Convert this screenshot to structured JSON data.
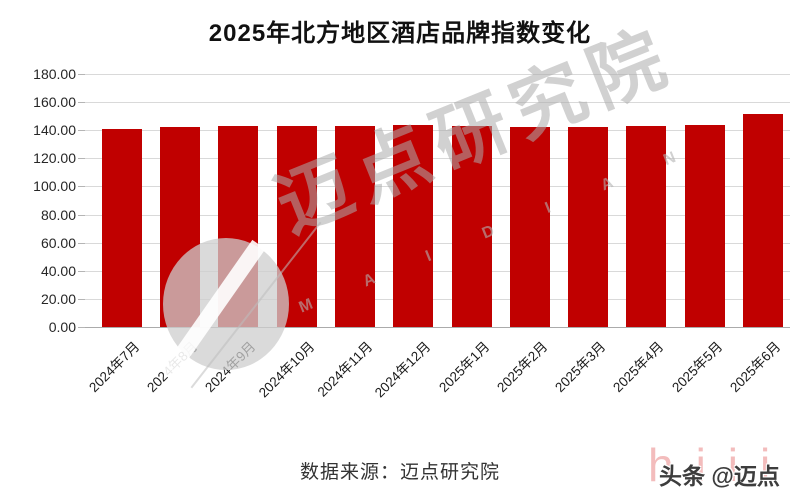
{
  "title": "2025年北方地区酒店品牌指数变化",
  "chart_data": {
    "type": "bar",
    "title": "2025年北方地区酒店品牌指数变化",
    "categories": [
      "2024年7月",
      "2024年8月",
      "2024年9月",
      "2024年10月",
      "2024年11月",
      "2024年12月",
      "2025年1月",
      "2025年2月",
      "2025年3月",
      "2025年4月",
      "2025年5月",
      "2025年6月"
    ],
    "values": [
      141.2,
      142.2,
      143.1,
      142.9,
      143.3,
      143.9,
      142.9,
      142.4,
      142.3,
      143.0,
      143.5,
      151.3
    ],
    "xlabel": "",
    "ylabel": "",
    "ylim": [
      0,
      180
    ],
    "ytick_step": 20,
    "ytick_decimals": 2,
    "grid": true,
    "legend_position": "none",
    "bar_color": "#C00000",
    "gridline_color": "#D9D9D9"
  },
  "footer": {
    "source_label": "数据来源：迈点研究院"
  },
  "attribution": {
    "text": "头条 @迈点"
  },
  "watermark": {
    "brand_text": "迈点研究院",
    "brand_letters": "M A I D I A N",
    "pink_text": "hiii"
  }
}
